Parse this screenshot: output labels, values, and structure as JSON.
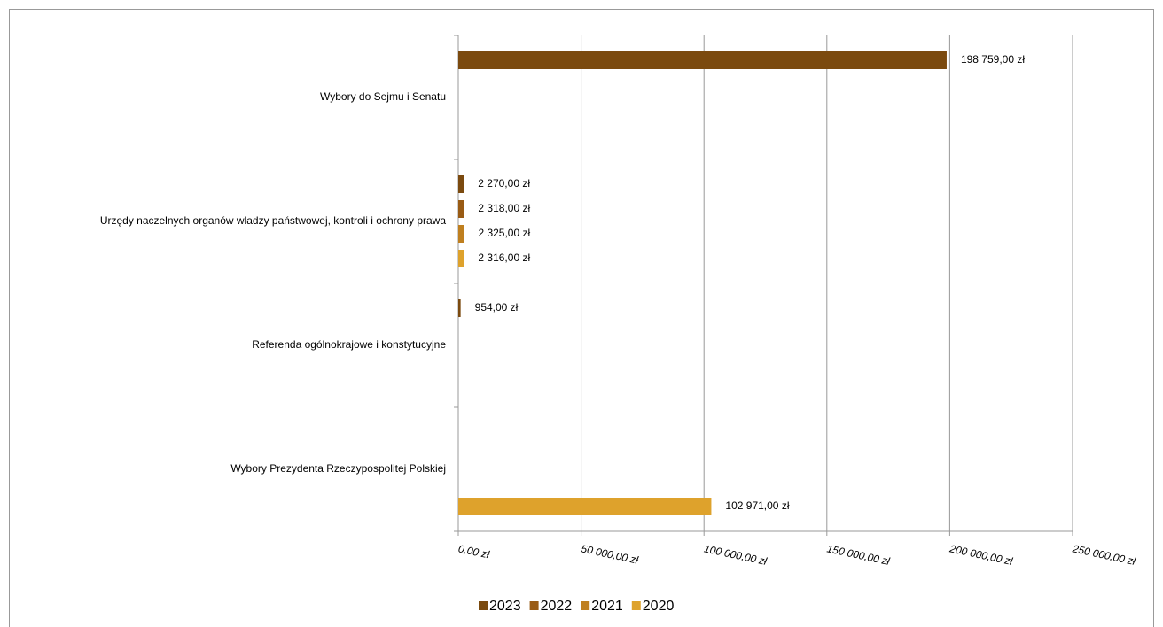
{
  "chart_data": {
    "type": "barh",
    "categories": [
      "Wybory do Sejmu i Senatu",
      "Urzędy naczelnych organów władzy państwowej, kontroli i ochrony prawa",
      "Referenda ogólnokrajowe i konstytucyjne",
      "Wybory Prezydenta Rzeczypospolitej Polskiej"
    ],
    "series": [
      {
        "name": "2023",
        "color": "#7b4a0f",
        "values": [
          198759,
          2270,
          954,
          null
        ],
        "value_labels": [
          "198 759,00 zł",
          "2 270,00 zł",
          "954,00 zł",
          null
        ]
      },
      {
        "name": "2022",
        "color": "#995b14",
        "values": [
          null,
          2318,
          null,
          null
        ],
        "value_labels": [
          null,
          "2 318,00 zł",
          null,
          null
        ]
      },
      {
        "name": "2021",
        "color": "#bf7f1f",
        "values": [
          null,
          2325,
          null,
          null
        ],
        "value_labels": [
          null,
          "2 325,00 zł",
          null,
          null
        ]
      },
      {
        "name": "2020",
        "color": "#dea22c",
        "values": [
          null,
          2316,
          null,
          102971
        ],
        "value_labels": [
          null,
          "2 316,00 zł",
          null,
          "102 971,00 zł"
        ]
      }
    ],
    "xlim": [
      0,
      250000
    ],
    "xticks": [
      {
        "value": 0,
        "label": "0,00 zł"
      },
      {
        "value": 50000,
        "label": "50 000,00 zł"
      },
      {
        "value": 100000,
        "label": "100 000,00 zł"
      },
      {
        "value": 150000,
        "label": "150 000,00 zł"
      },
      {
        "value": 200000,
        "label": "200 000,00 zł"
      },
      {
        "value": 250000,
        "label": "250 000,00 zł"
      }
    ],
    "grid": true,
    "legend": "bottom"
  }
}
